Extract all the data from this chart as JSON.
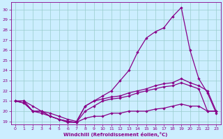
{
  "xlabel": "Windchill (Refroidissement éolien,°C)",
  "bg_color": "#cceeff",
  "line_color": "#880088",
  "grid_color": "#99cccc",
  "xlim": [
    -0.5,
    23.5
  ],
  "ylim": [
    18.7,
    30.7
  ],
  "yticks": [
    19,
    20,
    21,
    22,
    23,
    24,
    25,
    26,
    27,
    28,
    29,
    30
  ],
  "xticks": [
    0,
    1,
    2,
    3,
    4,
    5,
    6,
    7,
    8,
    9,
    10,
    11,
    12,
    13,
    14,
    15,
    16,
    17,
    18,
    19,
    20,
    21,
    22,
    23
  ],
  "line_peak_x": [
    0,
    1,
    2,
    3,
    4,
    5,
    6,
    7,
    8,
    9,
    10,
    11,
    12,
    13,
    14,
    15,
    16,
    17,
    18,
    19,
    20,
    21,
    22,
    23
  ],
  "line_peak_y": [
    21.0,
    21.0,
    20.0,
    20.0,
    19.5,
    19.2,
    18.9,
    18.9,
    20.5,
    21.0,
    21.5,
    22.0,
    23.0,
    24.0,
    25.8,
    27.2,
    27.8,
    28.2,
    29.3,
    30.2,
    26.0,
    23.2,
    21.8,
    19.8
  ],
  "line_mid_x": [
    0,
    1,
    2,
    3,
    4,
    5,
    6,
    7,
    8,
    9,
    10,
    11,
    12,
    13,
    14,
    15,
    16,
    17,
    18,
    19,
    20,
    21,
    22,
    23
  ],
  "line_mid_y": [
    21.0,
    21.0,
    20.5,
    20.0,
    19.8,
    19.5,
    19.2,
    19.0,
    20.5,
    21.0,
    21.2,
    21.4,
    21.5,
    21.8,
    22.0,
    22.2,
    22.5,
    22.7,
    22.8,
    23.2,
    22.8,
    22.5,
    22.0,
    20.0
  ],
  "line_low_x": [
    0,
    1,
    2,
    3,
    4,
    5,
    6,
    7,
    8,
    9,
    10,
    11,
    12,
    13,
    14,
    15,
    16,
    17,
    18,
    19,
    20,
    21,
    22,
    23
  ],
  "line_low_y": [
    21.0,
    20.8,
    20.0,
    20.0,
    19.5,
    19.2,
    19.0,
    18.9,
    20.0,
    20.5,
    21.0,
    21.2,
    21.3,
    21.5,
    21.8,
    22.0,
    22.2,
    22.4,
    22.5,
    22.8,
    22.5,
    22.2,
    20.0,
    20.0
  ],
  "line_flat_x": [
    0,
    1,
    2,
    3,
    4,
    5,
    6,
    7,
    8,
    9,
    10,
    11,
    12,
    13,
    14,
    15,
    16,
    17,
    18,
    19,
    20,
    21,
    22,
    23
  ],
  "line_flat_y": [
    21.0,
    20.8,
    20.0,
    19.8,
    19.5,
    19.2,
    19.0,
    18.9,
    19.3,
    19.5,
    19.5,
    19.8,
    19.8,
    20.0,
    20.0,
    20.0,
    20.2,
    20.3,
    20.5,
    20.7,
    20.5,
    20.5,
    20.0,
    20.0
  ]
}
